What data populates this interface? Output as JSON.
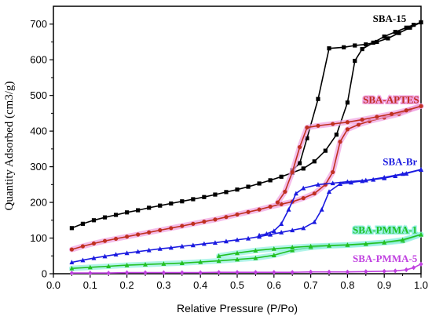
{
  "chart_data": {
    "type": "line",
    "title": "",
    "xlabel": "Relative Pressure (P/Po)",
    "ylabel": "Quantity Adsorbed (cm3/g)",
    "xlim": [
      0.0,
      1.0
    ],
    "ylim": [
      0,
      750
    ],
    "x_ticks": [
      "0.0",
      "0.1",
      "0.2",
      "0.3",
      "0.4",
      "0.5",
      "0.6",
      "0.7",
      "0.8",
      "0.9",
      "1.0"
    ],
    "y_ticks": [
      "0",
      "100",
      "200",
      "300",
      "400",
      "500",
      "600",
      "700"
    ],
    "grid": false,
    "legend": "inline labels",
    "series": [
      {
        "name": "SBA-15",
        "color": "#000000",
        "marker": "square",
        "adsorption": {
          "x": [
            0.05,
            0.08,
            0.11,
            0.14,
            0.17,
            0.2,
            0.23,
            0.26,
            0.29,
            0.32,
            0.35,
            0.38,
            0.41,
            0.44,
            0.47,
            0.5,
            0.53,
            0.56,
            0.59,
            0.62,
            0.65,
            0.68,
            0.71,
            0.74,
            0.77,
            0.8,
            0.82,
            0.84,
            0.87,
            0.9,
            0.93,
            0.96,
            0.98,
            1.0
          ],
          "y": [
            128,
            140,
            150,
            158,
            165,
            172,
            178,
            185,
            191,
            197,
            203,
            209,
            215,
            222,
            229,
            236,
            244,
            253,
            262,
            272,
            283,
            295,
            315,
            345,
            390,
            480,
            597,
            630,
            648,
            665,
            678,
            690,
            698,
            705
          ]
        },
        "desorption": {
          "x": [
            1.0,
            0.97,
            0.94,
            0.91,
            0.88,
            0.85,
            0.82,
            0.79,
            0.75,
            0.72,
            0.69,
            0.67,
            0.65
          ],
          "y": [
            705,
            690,
            675,
            660,
            650,
            643,
            640,
            635,
            632,
            490,
            380,
            310,
            290
          ]
        },
        "label_pos": [
          0.96,
          706
        ]
      },
      {
        "name": "SBA-APTES",
        "color": "#c03020",
        "highlight": "#f0a0e0",
        "marker": "circle",
        "adsorption": {
          "x": [
            0.05,
            0.08,
            0.11,
            0.14,
            0.17,
            0.2,
            0.23,
            0.26,
            0.29,
            0.32,
            0.35,
            0.38,
            0.41,
            0.44,
            0.47,
            0.5,
            0.53,
            0.56,
            0.59,
            0.62,
            0.65,
            0.68,
            0.71,
            0.74,
            0.76,
            0.78,
            0.8,
            0.83,
            0.86,
            0.9,
            0.94,
            0.97,
            1.0
          ],
          "y": [
            68,
            77,
            85,
            92,
            98,
            104,
            110,
            116,
            122,
            128,
            134,
            140,
            146,
            152,
            159,
            166,
            173,
            180,
            188,
            195,
            202,
            212,
            225,
            250,
            285,
            370,
            405,
            418,
            428,
            438,
            448,
            460,
            470
          ]
        },
        "desorption": {
          "x": [
            1.0,
            0.96,
            0.92,
            0.88,
            0.84,
            0.8,
            0.76,
            0.72,
            0.69,
            0.67,
            0.65,
            0.63,
            0.61
          ],
          "y": [
            470,
            458,
            448,
            440,
            432,
            425,
            420,
            415,
            410,
            355,
            285,
            230,
            200
          ]
        },
        "label_pos": [
          0.995,
          478
        ]
      },
      {
        "name": "SBA-Br",
        "color": "#1a1ae0",
        "marker": "triangle",
        "adsorption": {
          "x": [
            0.05,
            0.08,
            0.11,
            0.14,
            0.17,
            0.2,
            0.23,
            0.26,
            0.29,
            0.32,
            0.35,
            0.38,
            0.41,
            0.44,
            0.47,
            0.5,
            0.53,
            0.56,
            0.59,
            0.62,
            0.65,
            0.68,
            0.71,
            0.73,
            0.75,
            0.78,
            0.81,
            0.84,
            0.87,
            0.9,
            0.93,
            0.96,
            1.0
          ],
          "y": [
            32,
            38,
            44,
            49,
            54,
            58,
            62,
            66,
            70,
            73,
            77,
            80,
            84,
            87,
            91,
            95,
            99,
            104,
            110,
            116,
            122,
            128,
            145,
            180,
            230,
            252,
            256,
            260,
            264,
            268,
            274,
            281,
            292
          ]
        },
        "desorption": {
          "x": [
            1.0,
            0.95,
            0.9,
            0.85,
            0.8,
            0.76,
            0.72,
            0.68,
            0.66,
            0.64,
            0.62,
            0.6,
            0.58,
            0.56
          ],
          "y": [
            292,
            280,
            270,
            262,
            258,
            254,
            250,
            240,
            225,
            180,
            140,
            120,
            112,
            108
          ]
        },
        "label_pos": [
          0.99,
          305
        ]
      },
      {
        "name": "SBA-PMMA-1",
        "color": "#22c022",
        "highlight": "#90f0e0",
        "marker": "triangle",
        "adsorption": {
          "x": [
            0.05,
            0.1,
            0.15,
            0.2,
            0.25,
            0.3,
            0.35,
            0.4,
            0.45,
            0.5,
            0.55,
            0.6,
            0.65,
            0.7,
            0.75,
            0.8,
            0.85,
            0.9,
            0.95,
            1.0
          ],
          "y": [
            15,
            18,
            21,
            24,
            26,
            28,
            30,
            33,
            36,
            40,
            44,
            52,
            66,
            74,
            78,
            80,
            83,
            87,
            92,
            110
          ]
        },
        "desorption": {
          "x": [
            1.0,
            0.95,
            0.9,
            0.85,
            0.8,
            0.75,
            0.7,
            0.65,
            0.6,
            0.55,
            0.5,
            0.45
          ],
          "y": [
            110,
            95,
            88,
            84,
            81,
            79,
            77,
            74,
            70,
            65,
            58,
            50
          ]
        },
        "label_pos": [
          0.99,
          113
        ]
      },
      {
        "name": "SBA-PMMA-5",
        "color": "#c040e0",
        "marker": "diamond",
        "adsorption": {
          "x": [
            0.05,
            0.1,
            0.15,
            0.2,
            0.25,
            0.3,
            0.35,
            0.4,
            0.45,
            0.5,
            0.55,
            0.6,
            0.65,
            0.7,
            0.75,
            0.8,
            0.85,
            0.9,
            0.93,
            0.96,
            0.98,
            1.0
          ],
          "y": [
            2,
            2,
            2,
            3,
            3,
            3,
            3,
            3,
            4,
            4,
            4,
            4,
            4,
            5,
            5,
            5,
            6,
            7,
            8,
            11,
            17,
            27
          ]
        },
        "desorption": {
          "x": [],
          "y": []
        },
        "label_pos": [
          0.99,
          33
        ]
      }
    ]
  }
}
